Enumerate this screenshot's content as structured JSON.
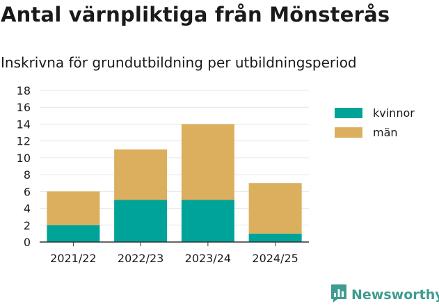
{
  "header": {
    "title": "Antal värnpliktiga från Mönsterås",
    "subtitle": "Inskrivna för grundutbildning per utbildningsperiod"
  },
  "colors": {
    "kvinnor": "#00a398",
    "man": "#dbaf5d",
    "grid": "#e6e6e6",
    "axis": "#333333",
    "brand": "#3f9c8f"
  },
  "chart_data": {
    "type": "bar",
    "stacked": true,
    "categories": [
      "2021/22",
      "2022/23",
      "2023/24",
      "2024/25"
    ],
    "series": [
      {
        "name": "kvinnor",
        "values": [
          2,
          5,
          5,
          1
        ]
      },
      {
        "name": "män",
        "values": [
          4,
          6,
          9,
          6
        ]
      }
    ],
    "yticks": [
      0,
      2,
      4,
      6,
      8,
      10,
      12,
      14,
      16,
      18
    ],
    "ylim": [
      0,
      18
    ],
    "grid": true,
    "legend_position": "right"
  },
  "legend": {
    "items": [
      {
        "label": "kvinnor",
        "color_key": "kvinnor"
      },
      {
        "label": "män",
        "color_key": "man"
      }
    ]
  },
  "brand": {
    "name": "Newsworthy",
    "icon": "bar-chart-speech-bubble-icon"
  }
}
